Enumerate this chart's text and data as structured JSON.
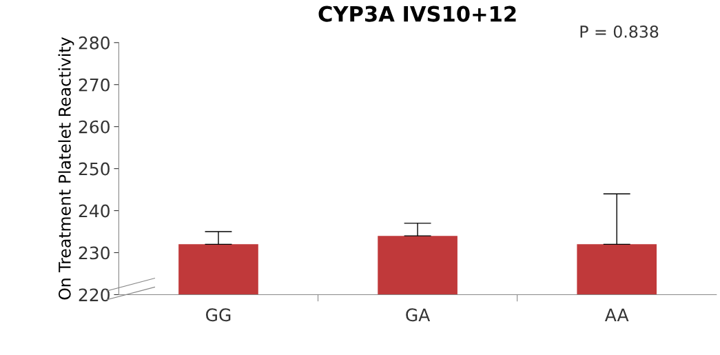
{
  "chart_data": {
    "type": "bar",
    "title": "CYP3A IVS10+12",
    "ylabel": "On Treatment Platelet Reactivity",
    "categories": [
      "GG",
      "GA",
      "AA"
    ],
    "values": [
      232,
      234,
      232
    ],
    "errors": [
      [
        232,
        235
      ],
      [
        234,
        237
      ],
      [
        232,
        244
      ]
    ],
    "color": "#c0393a",
    "ylim": [
      220,
      280
    ],
    "yticks": [
      220,
      230,
      240,
      250,
      260,
      270,
      280
    ],
    "annotations": [
      "P = 0.838"
    ],
    "grid": false,
    "legend": false
  }
}
